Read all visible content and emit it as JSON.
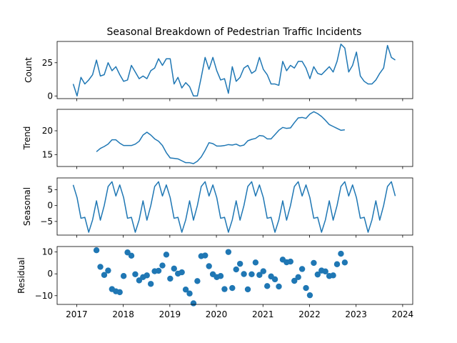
{
  "chart_data": {
    "type": "line",
    "title": "Seasonal Breakdown of Pedestrian Traffic Incidents",
    "start": "2016-12",
    "x_ticks": [
      "2017",
      "2018",
      "2019",
      "2020",
      "2021",
      "2022",
      "2023",
      "2024"
    ],
    "color": "#1f77b4",
    "panels": [
      {
        "name": "count",
        "ylabel": "Count",
        "kind": "line",
        "ylim": [
          -2,
          41
        ],
        "yticks": [
          {
            "v": 0,
            "label": "0"
          },
          {
            "v": 25,
            "label": "25"
          }
        ],
        "offset": 0,
        "values": [
          9,
          0,
          14,
          9,
          12,
          16,
          27,
          15,
          16,
          25,
          19,
          22,
          16,
          11,
          12,
          23,
          18,
          13,
          15,
          13,
          19,
          21,
          28,
          23,
          28,
          28,
          9,
          14,
          6,
          10,
          7,
          0,
          0,
          14,
          29,
          20,
          29,
          19,
          12,
          13,
          2,
          22,
          11,
          14,
          21,
          23,
          17,
          19,
          29,
          20,
          16,
          9,
          9,
          8,
          26,
          19,
          23,
          21,
          26,
          26,
          21,
          13,
          22,
          17,
          16,
          19,
          22,
          18,
          26,
          39,
          36,
          18,
          23,
          33,
          15,
          11,
          9,
          9,
          12,
          17,
          21,
          38,
          29,
          27
        ]
      },
      {
        "name": "trend",
        "ylabel": "Trend",
        "kind": "line",
        "ylim": [
          12.5,
          24.5
        ],
        "yticks": [
          {
            "v": 15,
            "label": "15"
          },
          {
            "v": 20,
            "label": "20"
          }
        ],
        "offset": 6,
        "values": [
          15.6,
          16.3,
          16.7,
          17.2,
          18.1,
          18.1,
          17.4,
          16.9,
          16.9,
          16.9,
          17.2,
          17.8,
          19.1,
          19.7,
          19.1,
          18.3,
          17.8,
          16.9,
          15.4,
          14.3,
          14.2,
          14.1,
          13.7,
          13.3,
          13.3,
          13.1,
          13.6,
          14.5,
          15.9,
          17.5,
          17.3,
          16.8,
          16.8,
          16.9,
          17.1,
          17.0,
          17.2,
          16.8,
          17.0,
          17.9,
          18.2,
          18.4,
          19.0,
          18.9,
          18.3,
          18.3,
          19.2,
          20.1,
          20.7,
          20.5,
          20.6,
          21.7,
          22.7,
          22.8,
          22.6,
          23.5,
          24.0,
          23.6,
          23.0,
          22.2,
          21.3,
          20.9,
          20.5,
          20.1,
          20.2
        ]
      },
      {
        "name": "seasonal",
        "ylabel": "Seasonal",
        "kind": "line",
        "ylim": [
          -9.3,
          8.7
        ],
        "yticks": [
          {
            "v": -5,
            "label": "−5"
          },
          {
            "v": 0,
            "label": "0"
          },
          {
            "v": 5,
            "label": "5"
          }
        ],
        "offset": 0,
        "values": [
          6.5,
          2.5,
          -4.0,
          -3.7,
          -8.4,
          -4.5,
          1.5,
          -4.6,
          0,
          6.0,
          7.5,
          3.0,
          6.5,
          2.5,
          -4.0,
          -3.7,
          -8.4,
          -4.5,
          1.5,
          -4.6,
          0,
          6.0,
          7.5,
          3.0,
          6.5,
          2.5,
          -4.0,
          -3.7,
          -8.4,
          -4.5,
          1.5,
          -4.6,
          0,
          6.0,
          7.5,
          3.0,
          6.5,
          2.5,
          -4.0,
          -3.7,
          -8.4,
          -4.5,
          1.5,
          -4.6,
          0,
          6.0,
          7.5,
          3.0,
          6.5,
          2.5,
          -4.0,
          -3.7,
          -8.4,
          -4.5,
          1.5,
          -4.6,
          0,
          6.0,
          7.5,
          3.0,
          6.5,
          2.5,
          -4.0,
          -3.7,
          -8.4,
          -4.5,
          1.5,
          -4.6,
          0,
          6.0,
          7.5,
          3.0,
          6.5,
          2.5,
          -4.0,
          -3.7,
          -8.4,
          -4.5,
          1.5,
          -4.6,
          0,
          6.0,
          7.5,
          3.0
        ]
      },
      {
        "name": "residual",
        "ylabel": "Residual",
        "kind": "scatter",
        "ylim": [
          -14,
          12.5
        ],
        "yticks": [
          {
            "v": -10,
            "label": "−10"
          },
          {
            "v": 0,
            "label": "0"
          },
          {
            "v": 10,
            "label": "10"
          }
        ],
        "offset": 6,
        "values": [
          10.8,
          3.2,
          -0.5,
          1.5,
          -7.0,
          -8.0,
          -8.4,
          -1.0,
          9.8,
          8.3,
          -0.2,
          -3.0,
          -1.5,
          -0.7,
          -4.6,
          1.2,
          1.4,
          3.8,
          8.8,
          -2.2,
          2.4,
          0.1,
          0.7,
          -7.2,
          -9.0,
          -13.5,
          -3.3,
          8.1,
          8.4,
          3.5,
          -0.2,
          -1.5,
          -1.0,
          -7.0,
          10.0,
          -6.5,
          2.0,
          4.6,
          -0.1,
          -7.1,
          -0.2,
          5.2,
          -0.5,
          1.2,
          -5.6,
          -1.2,
          -2.5,
          -5.8,
          6.5,
          5.3,
          5.6,
          -3.2,
          -1.5,
          2.2,
          -6.5,
          -9.8,
          5.0,
          -0.3,
          1.5,
          1.1,
          -1.0,
          -0.7,
          4.4,
          9.2,
          5.2
        ]
      }
    ]
  }
}
